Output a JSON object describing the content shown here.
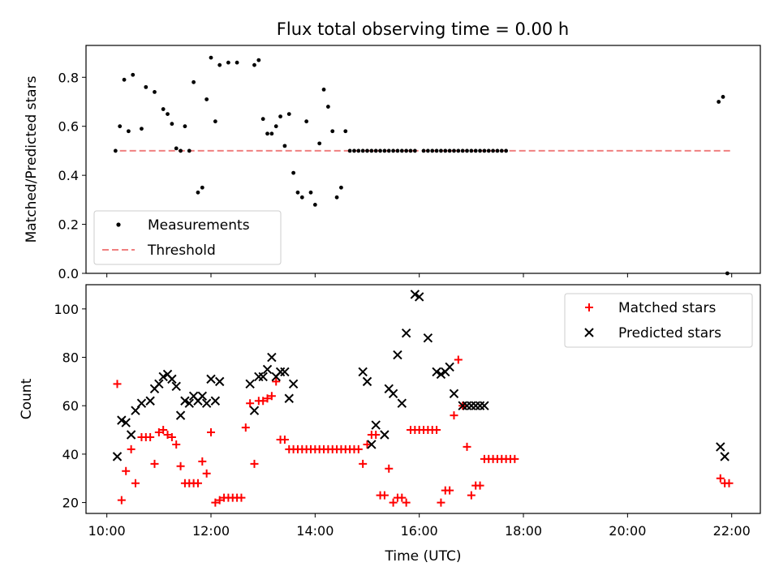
{
  "title": "Flux total observing time = 0.00 h",
  "colors": {
    "measurement": "#000000",
    "threshold": "#f08080",
    "matched": "#ff0000",
    "predicted": "#000000"
  },
  "chart_data": [
    {
      "type": "scatter",
      "ylabel": "Matched/Predicted stars",
      "xlabel": "",
      "xlim_hours": [
        9.6,
        22.55
      ],
      "ylim": [
        0,
        0.93
      ],
      "yticks": [
        0.0,
        0.2,
        0.4,
        0.6,
        0.8
      ],
      "ytick_labels": [
        "0.0",
        "0.2",
        "0.4",
        "0.6",
        "0.8"
      ],
      "legend": {
        "placement": "lower-left",
        "entries": [
          "Measurements",
          "Threshold"
        ]
      },
      "threshold": {
        "name": "Threshold",
        "value": 0.5,
        "x_start": "10:15",
        "x_end": "22:00"
      },
      "series": [
        {
          "name": "Measurements",
          "x": [
            "10:10",
            "10:15",
            "10:20",
            "10:25",
            "10:30",
            "10:40",
            "10:45",
            "10:55",
            "11:05",
            "11:10",
            "11:15",
            "11:20",
            "11:25",
            "11:30",
            "11:35",
            "11:40",
            "11:45",
            "11:50",
            "11:55",
            "12:00",
            "12:05",
            "12:10",
            "12:20",
            "12:30",
            "12:50",
            "12:55",
            "13:00",
            "13:05",
            "13:10",
            "13:15",
            "13:20",
            "13:25",
            "13:30",
            "13:35",
            "13:40",
            "13:45",
            "13:50",
            "13:55",
            "14:00",
            "14:05",
            "14:10",
            "14:15",
            "14:20",
            "14:25",
            "14:30",
            "14:35",
            "14:40",
            "14:45",
            "14:50",
            "14:55",
            "15:00",
            "15:05",
            "15:10",
            "15:15",
            "15:20",
            "15:25",
            "15:30",
            "15:35",
            "15:40",
            "15:45",
            "15:50",
            "15:55",
            "16:05",
            "16:10",
            "16:15",
            "16:20",
            "16:25",
            "16:30",
            "16:35",
            "16:40",
            "16:45",
            "16:50",
            "16:55",
            "17:00",
            "17:05",
            "17:10",
            "17:15",
            "17:20",
            "17:25",
            "17:30",
            "17:35",
            "17:40",
            "21:45",
            "21:50",
            "21:55"
          ],
          "y": [
            0.5,
            0.6,
            0.79,
            0.58,
            0.81,
            0.59,
            0.76,
            0.74,
            0.67,
            0.65,
            0.61,
            0.51,
            0.5,
            0.6,
            0.5,
            0.78,
            0.33,
            0.35,
            0.71,
            0.88,
            0.62,
            0.85,
            0.86,
            0.86,
            0.85,
            0.87,
            0.63,
            0.57,
            0.57,
            0.6,
            0.64,
            0.52,
            0.65,
            0.41,
            0.33,
            0.31,
            0.62,
            0.33,
            0.28,
            0.53,
            0.75,
            0.68,
            0.58,
            0.31,
            0.35,
            0.58,
            0.5,
            0.5,
            0.5,
            0.5,
            0.5,
            0.5,
            0.5,
            0.5,
            0.5,
            0.5,
            0.5,
            0.5,
            0.5,
            0.5,
            0.5,
            0.5,
            0.5,
            0.5,
            0.5,
            0.5,
            0.5,
            0.5,
            0.5,
            0.5,
            0.5,
            0.5,
            0.5,
            0.5,
            0.5,
            0.5,
            0.5,
            0.5,
            0.5,
            0.5,
            0.5,
            0.5,
            0.7,
            0.72,
            0.0
          ]
        }
      ]
    },
    {
      "type": "scatter",
      "ylabel": "Count",
      "xlabel": "Time (UTC)",
      "xlim_hours": [
        9.6,
        22.55
      ],
      "ylim": [
        15.5,
        110
      ],
      "yticks": [
        20,
        40,
        60,
        80,
        100
      ],
      "ytick_labels": [
        "20",
        "40",
        "60",
        "80",
        "100"
      ],
      "xtick_labels": [
        "10:00",
        "12:00",
        "14:00",
        "16:00",
        "18:00",
        "20:00",
        "22:00"
      ],
      "legend": {
        "placement": "top-right",
        "entries": [
          "Matched stars",
          "Predicted stars"
        ]
      },
      "series": [
        {
          "name": "Matched stars",
          "marker": "plus",
          "x": [
            "10:12",
            "10:17",
            "10:22",
            "10:28",
            "10:33",
            "10:40",
            "10:45",
            "10:50",
            "10:55",
            "11:00",
            "11:05",
            "11:10",
            "11:15",
            "11:20",
            "11:25",
            "11:30",
            "11:35",
            "11:40",
            "11:45",
            "11:50",
            "11:55",
            "12:00",
            "12:05",
            "12:10",
            "12:15",
            "12:20",
            "12:25",
            "12:30",
            "12:35",
            "12:40",
            "12:45",
            "12:50",
            "12:55",
            "13:00",
            "13:05",
            "13:10",
            "13:15",
            "13:20",
            "13:25",
            "13:30",
            "13:35",
            "13:40",
            "13:45",
            "13:50",
            "13:55",
            "14:00",
            "14:05",
            "14:10",
            "14:15",
            "14:20",
            "14:25",
            "14:30",
            "14:35",
            "14:40",
            "14:45",
            "14:50",
            "14:55",
            "15:00",
            "15:05",
            "15:10",
            "15:15",
            "15:20",
            "15:25",
            "15:30",
            "15:35",
            "15:40",
            "15:45",
            "15:50",
            "15:55",
            "16:00",
            "16:05",
            "16:10",
            "16:15",
            "16:20",
            "16:25",
            "16:30",
            "16:35",
            "16:40",
            "16:45",
            "16:50",
            "16:55",
            "17:00",
            "17:05",
            "17:10",
            "17:15",
            "17:20",
            "17:25",
            "17:30",
            "17:35",
            "17:40",
            "17:45",
            "17:50",
            "21:47",
            "21:52",
            "21:57"
          ],
          "y": [
            69,
            21,
            33,
            42,
            28,
            47,
            47,
            47,
            36,
            49,
            50,
            48,
            47,
            44,
            35,
            28,
            28,
            28,
            28,
            37,
            32,
            49,
            20,
            21,
            22,
            22,
            22,
            22,
            22,
            51,
            61,
            36,
            62,
            62,
            63,
            64,
            70,
            46,
            46,
            42,
            42,
            42,
            42,
            42,
            42,
            42,
            42,
            42,
            42,
            42,
            42,
            42,
            42,
            42,
            42,
            42,
            36,
            44,
            48,
            48,
            23,
            23,
            34,
            20,
            22,
            22,
            20,
            50,
            50,
            50,
            50,
            50,
            50,
            50,
            20,
            25,
            25,
            56,
            79,
            60,
            43,
            23,
            27,
            27,
            38,
            38,
            38,
            38,
            38,
            38,
            38,
            38,
            30,
            28,
            28
          ]
        },
        {
          "name": "Predicted stars",
          "marker": "x",
          "x": [
            "10:12",
            "10:17",
            "10:22",
            "10:28",
            "10:33",
            "10:40",
            "10:50",
            "10:55",
            "11:00",
            "11:05",
            "11:10",
            "11:15",
            "11:20",
            "11:25",
            "11:30",
            "11:35",
            "11:40",
            "11:45",
            "11:50",
            "11:55",
            "12:00",
            "12:05",
            "12:10",
            "12:45",
            "12:50",
            "12:55",
            "13:00",
            "13:05",
            "13:10",
            "13:15",
            "13:20",
            "13:25",
            "13:30",
            "13:35",
            "14:55",
            "15:00",
            "15:05",
            "15:10",
            "15:20",
            "15:25",
            "15:30",
            "15:35",
            "15:40",
            "15:45",
            "15:55",
            "16:00",
            "16:10",
            "16:20",
            "16:25",
            "16:30",
            "16:35",
            "16:40",
            "16:50",
            "16:55",
            "17:00",
            "17:05",
            "17:10",
            "17:15",
            "21:47",
            "21:52"
          ],
          "y": [
            39,
            54,
            53,
            48,
            58,
            61,
            62,
            67,
            69,
            72,
            73,
            71,
            68,
            56,
            62,
            61,
            64,
            62,
            64,
            61,
            71,
            62,
            70,
            69,
            58,
            72,
            72,
            75,
            80,
            72,
            74,
            74,
            63,
            69,
            74,
            70,
            44,
            52,
            48,
            67,
            65,
            81,
            61,
            90,
            106,
            105,
            88,
            74,
            73,
            74,
            76,
            65,
            60,
            60,
            60,
            60,
            60,
            60,
            43,
            39
          ]
        }
      ]
    }
  ]
}
